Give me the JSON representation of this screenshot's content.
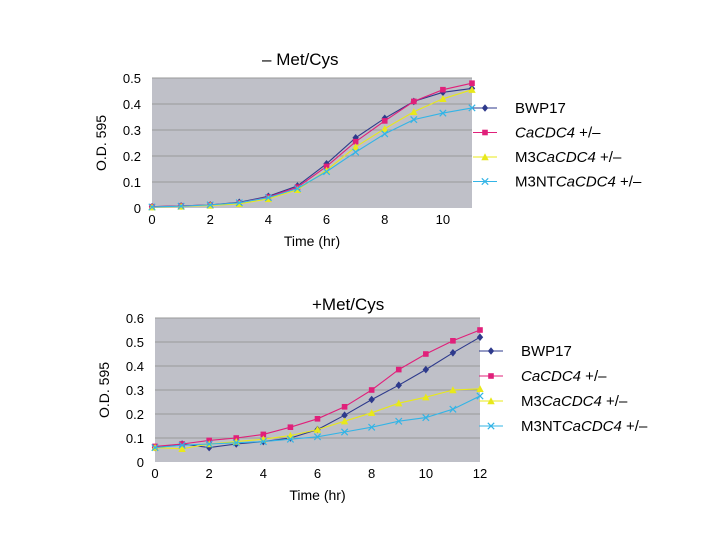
{
  "chart_data": [
    {
      "type": "line",
      "title_prefix": "–",
      "title": "Met/Cys",
      "xlabel": "Time (hr)",
      "ylabel": "O.D. 595",
      "xlim": [
        0,
        11
      ],
      "ylim": [
        0,
        0.5
      ],
      "xticks": [
        0,
        2,
        4,
        6,
        8,
        10
      ],
      "yticks": [
        0,
        0.1,
        0.2,
        0.3,
        0.4,
        0.5
      ],
      "ytick_labels": [
        "0",
        "0.1",
        "0.2",
        "0.3",
        "0.4",
        "0.5"
      ],
      "grid": true,
      "legend_position": "right",
      "x": [
        0,
        1,
        2,
        3,
        4,
        5,
        6,
        7,
        8,
        9,
        10,
        11
      ],
      "series": [
        {
          "name": "BWP17",
          "legend": [
            {
              "t": "BWP17",
              "i": false
            }
          ],
          "color": "#2e3a8c",
          "marker": "diamond",
          "values": [
            0.005,
            0.008,
            0.012,
            0.022,
            0.045,
            0.085,
            0.17,
            0.27,
            0.345,
            0.41,
            0.445,
            0.46
          ]
        },
        {
          "name": "CaCDC4 +/–",
          "legend": [
            {
              "t": "CaCDC4",
              "i": true
            },
            {
              "t": " +/–",
              "i": false
            }
          ],
          "color": "#e0207a",
          "marker": "square",
          "values": [
            0.005,
            0.008,
            0.012,
            0.02,
            0.042,
            0.08,
            0.16,
            0.255,
            0.335,
            0.41,
            0.455,
            0.48
          ]
        },
        {
          "name": "M3CaCDC4 +/–",
          "legend": [
            {
              "t": "M3",
              "i": false
            },
            {
              "t": "CaCDC4",
              "i": true
            },
            {
              "t": " +/–",
              "i": false
            }
          ],
          "color": "#e8e81a",
          "marker": "triangle",
          "values": [
            0.003,
            0.006,
            0.01,
            0.016,
            0.035,
            0.07,
            0.145,
            0.235,
            0.305,
            0.37,
            0.42,
            0.455
          ]
        },
        {
          "name": "M3NTCaCDC4 +/–",
          "legend": [
            {
              "t": "M3NT",
              "i": false
            },
            {
              "t": "CaCDC4",
              "i": true
            },
            {
              "t": " +/–",
              "i": false
            }
          ],
          "color": "#33b4e6",
          "marker": "x",
          "values": [
            0.004,
            0.007,
            0.012,
            0.02,
            0.04,
            0.075,
            0.14,
            0.215,
            0.285,
            0.34,
            0.365,
            0.385
          ]
        }
      ]
    },
    {
      "type": "line",
      "title_prefix": "",
      "title": "+Met/Cys",
      "xlabel": "Time (hr)",
      "ylabel": "O.D. 595",
      "xlim": [
        0,
        12
      ],
      "ylim": [
        0,
        0.6
      ],
      "xticks": [
        0,
        2,
        4,
        6,
        8,
        10,
        12
      ],
      "yticks": [
        0,
        0.1,
        0.2,
        0.3,
        0.4,
        0.5,
        0.6
      ],
      "ytick_labels": [
        "0",
        "0.1",
        "0.2",
        "0.3",
        "0.4",
        "0.5",
        "0.6"
      ],
      "grid": true,
      "legend_position": "right",
      "x": [
        0,
        1,
        2,
        3,
        4,
        5,
        6,
        7,
        8,
        9,
        10,
        11,
        12
      ],
      "series": [
        {
          "name": "BWP17",
          "legend": [
            {
              "t": "BWP17",
              "i": false
            }
          ],
          "color": "#2e3a8c",
          "marker": "diamond",
          "values": [
            0.06,
            0.075,
            0.06,
            0.075,
            0.085,
            0.1,
            0.135,
            0.195,
            0.26,
            0.32,
            0.385,
            0.455,
            0.52
          ]
        },
        {
          "name": "CaCDC4 +/–",
          "legend": [
            {
              "t": "CaCDC4",
              "i": true
            },
            {
              "t": " +/–",
              "i": false
            }
          ],
          "color": "#e0207a",
          "marker": "square",
          "values": [
            0.065,
            0.075,
            0.09,
            0.1,
            0.115,
            0.145,
            0.18,
            0.23,
            0.3,
            0.385,
            0.45,
            0.505,
            0.55
          ]
        },
        {
          "name": "M3CaCDC4 +/–",
          "legend": [
            {
              "t": "M3",
              "i": false
            },
            {
              "t": "CaCDC4",
              "i": true
            },
            {
              "t": " +/–",
              "i": false
            }
          ],
          "color": "#e8e81a",
          "marker": "triangle",
          "values": [
            0.06,
            0.055,
            0.075,
            0.085,
            0.095,
            0.11,
            0.135,
            0.17,
            0.205,
            0.245,
            0.27,
            0.3,
            0.305
          ]
        },
        {
          "name": "M3NTCaCDC4 +/–",
          "legend": [
            {
              "t": "M3NT",
              "i": false
            },
            {
              "t": "CaCDC4",
              "i": true
            },
            {
              "t": " +/–",
              "i": false
            }
          ],
          "color": "#33b4e6",
          "marker": "x",
          "values": [
            0.06,
            0.07,
            0.075,
            0.08,
            0.085,
            0.095,
            0.105,
            0.125,
            0.145,
            0.17,
            0.185,
            0.22,
            0.275
          ]
        }
      ]
    }
  ]
}
